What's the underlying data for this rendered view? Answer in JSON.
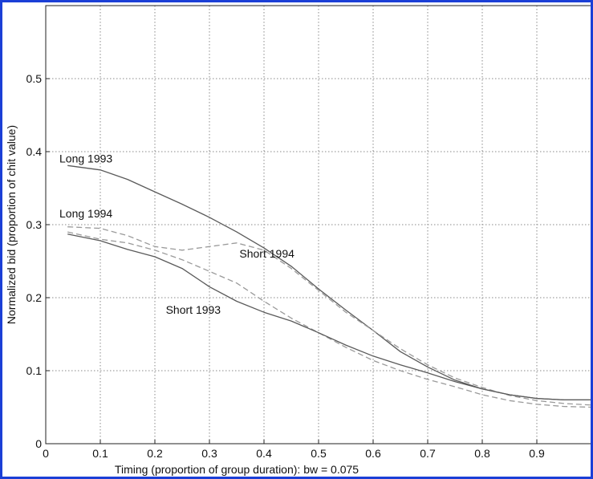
{
  "chart_data": {
    "type": "line",
    "title": "",
    "xlabel": "Timing (proportion of group duration): bw = 0.075",
    "ylabel": "Normalized bid (proportion of chit value)",
    "xlim": [
      0,
      1
    ],
    "ylim": [
      0,
      0.6
    ],
    "x_ticks": [
      "0",
      "0.1",
      "0.2",
      "0.3",
      "0.4",
      "0.5",
      "0.6",
      "0.7",
      "0.8",
      "0.9"
    ],
    "y_ticks": [
      "0",
      "0.1",
      "0.2",
      "0.3",
      "0.4",
      "0.5"
    ],
    "grid": true,
    "series": [
      {
        "name": "Long 1993",
        "style": "solid",
        "x": [
          0.04,
          0.1,
          0.15,
          0.2,
          0.25,
          0.3,
          0.35,
          0.4,
          0.45,
          0.5,
          0.55,
          0.6,
          0.65,
          0.7,
          0.75,
          0.8,
          0.85,
          0.9,
          0.95,
          1.0
        ],
        "y": [
          0.381,
          0.375,
          0.362,
          0.345,
          0.328,
          0.31,
          0.29,
          0.268,
          0.243,
          0.212,
          0.183,
          0.155,
          0.126,
          0.105,
          0.087,
          0.075,
          0.067,
          0.062,
          0.06,
          0.06
        ]
      },
      {
        "name": "Long 1994",
        "style": "dashed",
        "x": [
          0.04,
          0.1,
          0.15,
          0.2,
          0.25,
          0.3,
          0.35,
          0.4,
          0.45,
          0.5,
          0.55,
          0.6,
          0.65,
          0.7,
          0.75,
          0.8,
          0.85,
          0.9,
          0.95,
          1.0
        ],
        "y": [
          0.297,
          0.295,
          0.285,
          0.27,
          0.265,
          0.27,
          0.275,
          0.265,
          0.24,
          0.21,
          0.18,
          0.155,
          0.13,
          0.108,
          0.09,
          0.077,
          0.066,
          0.059,
          0.055,
          0.053
        ]
      },
      {
        "name": "Short 1994",
        "style": "dashed",
        "x": [
          0.04,
          0.1,
          0.15,
          0.2,
          0.25,
          0.3,
          0.35,
          0.4,
          0.45,
          0.5,
          0.55,
          0.6,
          0.65,
          0.7,
          0.75,
          0.8,
          0.85,
          0.9,
          0.95,
          1.0
        ],
        "y": [
          0.29,
          0.28,
          0.275,
          0.265,
          0.252,
          0.236,
          0.22,
          0.195,
          0.172,
          0.152,
          0.132,
          0.114,
          0.1,
          0.088,
          0.078,
          0.067,
          0.059,
          0.054,
          0.051,
          0.05
        ]
      },
      {
        "name": "Short 1993",
        "style": "solid",
        "x": [
          0.04,
          0.1,
          0.15,
          0.2,
          0.25,
          0.3,
          0.35,
          0.4,
          0.45,
          0.5,
          0.55,
          0.6,
          0.65,
          0.7,
          0.75,
          0.8,
          0.85,
          0.9,
          0.95,
          1.0
        ],
        "y": [
          0.287,
          0.278,
          0.266,
          0.256,
          0.24,
          0.215,
          0.195,
          0.18,
          0.168,
          0.152,
          0.135,
          0.12,
          0.108,
          0.097,
          0.085,
          0.075,
          0.067,
          0.062,
          0.06,
          0.06
        ]
      }
    ],
    "annotations": [
      {
        "text": "Long 1993",
        "x": 0.025,
        "y": 0.385
      },
      {
        "text": "Long 1994",
        "x": 0.025,
        "y": 0.31
      },
      {
        "text": "Short 1994",
        "x": 0.355,
        "y": 0.255
      },
      {
        "text": "Short 1993",
        "x": 0.22,
        "y": 0.178
      }
    ]
  },
  "colors": {
    "frame": "#1b3fd6",
    "solid_line": "#5a5a5a",
    "dashed_line": "#9a9a9a",
    "grid": "#8a8a8a",
    "axis": "#222222"
  }
}
